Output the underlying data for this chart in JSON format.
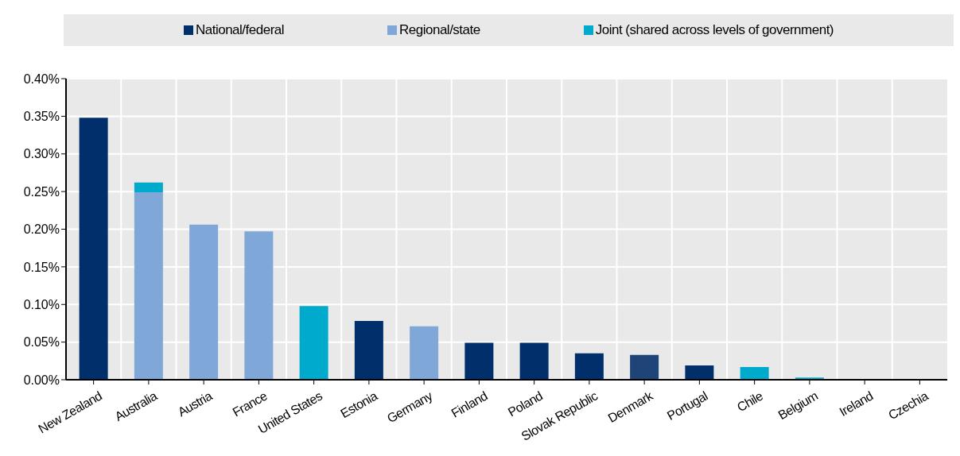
{
  "chart_data": {
    "type": "bar",
    "stacked": true,
    "categories": [
      "New Zealand",
      "Australia",
      "Austria",
      "France",
      "United States",
      "Estonia",
      "Germany",
      "Finland",
      "Poland",
      "Slovak Republic",
      "Denmark",
      "Portugal",
      "Chile",
      "Belgium",
      "Ireland",
      "Czechia"
    ],
    "series": [
      {
        "name": "National/federal",
        "color": "#002f6c",
        "colors": [
          "#002f6c",
          "#002f6c",
          "#002f6c",
          "#002f6c",
          "#002f6c",
          "#002f6c",
          "#002f6c",
          "#002f6c",
          "#002f6c",
          "#002f6c",
          "#1f4477",
          "#002f6c",
          "#002f6c",
          "#002f6c",
          "#002f6c",
          "#002f6c"
        ],
        "values": [
          0.348,
          null,
          null,
          null,
          null,
          0.078,
          null,
          0.049,
          0.049,
          0.035,
          0.033,
          0.019,
          null,
          null,
          0,
          0
        ]
      },
      {
        "name": "Regional/state",
        "color": "#7fa8d9",
        "values": [
          null,
          0.249,
          0.206,
          0.197,
          null,
          null,
          0.071,
          null,
          null,
          null,
          null,
          null,
          null,
          null,
          null,
          null
        ]
      },
      {
        "name": "Joint (shared across levels of government)",
        "color": "#00aacc",
        "values": [
          null,
          0.013,
          null,
          null,
          0.098,
          null,
          null,
          null,
          null,
          null,
          null,
          null,
          0.017,
          0.003,
          null,
          null
        ]
      }
    ],
    "ylim": [
      0,
      0.4
    ],
    "yticks": [
      {
        "value": 0,
        "label": "0.00%"
      },
      {
        "value": 0.05,
        "label": "0.05%"
      },
      {
        "value": 0.1,
        "label": "0.10%"
      },
      {
        "value": 0.15,
        "label": "0.15%"
      },
      {
        "value": 0.2,
        "label": "0.20%"
      },
      {
        "value": 0.25,
        "label": "0.25%"
      },
      {
        "value": 0.3,
        "label": "0.30%"
      },
      {
        "value": 0.35,
        "label": "0.35%"
      },
      {
        "value": 0.4,
        "label": "0.40%"
      }
    ],
    "grid": true,
    "legend": "top"
  }
}
